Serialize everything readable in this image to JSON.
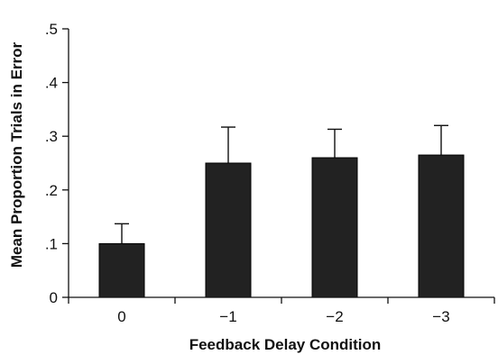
{
  "chart_data": {
    "type": "bar",
    "title": "",
    "xlabel": "Feedback Delay Condition",
    "ylabel": "Mean Proportion Trials in Error",
    "categories": [
      "0",
      "−1",
      "−2",
      "−3"
    ],
    "values": [
      0.1,
      0.25,
      0.26,
      0.265
    ],
    "error_upper": [
      0.137,
      0.317,
      0.313,
      0.32
    ],
    "ylim": [
      0,
      0.5
    ],
    "yticks": [
      0,
      0.1,
      0.2,
      0.3,
      0.4,
      0.5
    ],
    "ytick_labels": [
      "0",
      ".1",
      ".2",
      ".3",
      ".4",
      ".5"
    ],
    "grid": false,
    "bar_color": "#222222"
  }
}
